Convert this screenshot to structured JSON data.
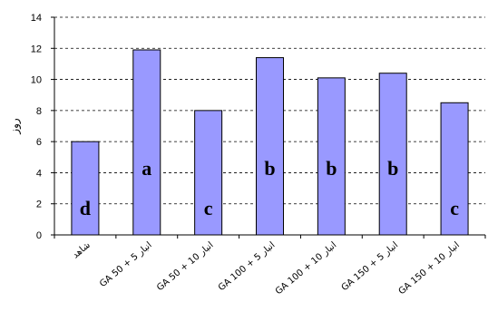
{
  "chart_data": {
    "type": "bar",
    "categories": [
      "شاهد",
      "GA 50 + 5 انبار",
      "GA 50 + 10 انبار",
      "GA 100 + 5 انبار",
      "GA 100 + 10 انبار",
      "GA 150 + 5 انبار",
      "GA 150 + 10 انبار"
    ],
    "values": [
      6.0,
      11.9,
      8.0,
      11.4,
      10.1,
      10.4,
      8.5
    ],
    "group_letters": [
      "d",
      "a",
      "c",
      "b",
      "b",
      "b",
      "c"
    ],
    "title": "",
    "xlabel": "",
    "ylabel": "روز",
    "ylim": [
      0,
      14
    ],
    "yticks": [
      0,
      2,
      4,
      6,
      8,
      10,
      12,
      14
    ],
    "grid": "horizontal-dashed",
    "legend": "none",
    "bar_color": "#9999ff",
    "bar_border": "#000000"
  }
}
